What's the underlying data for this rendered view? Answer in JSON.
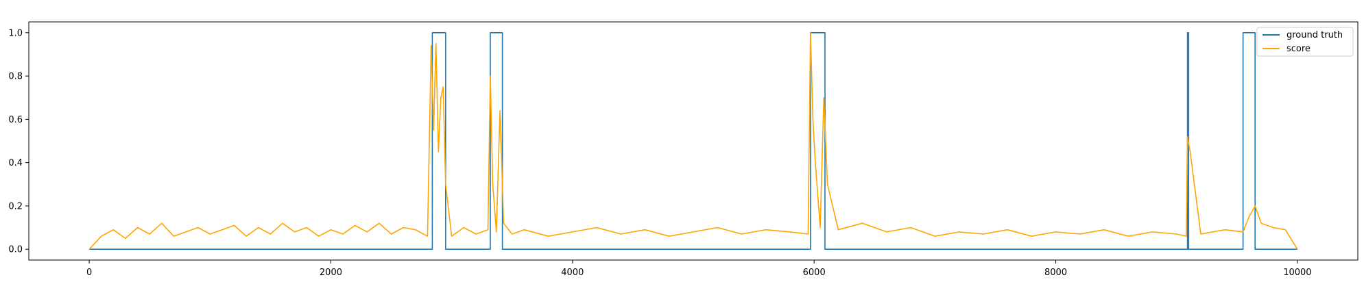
{
  "chart_data": {
    "type": "line",
    "title": "",
    "xlabel": "",
    "ylabel": "",
    "xlim": [
      -500,
      10500
    ],
    "ylim": [
      -0.05,
      1.05
    ],
    "xticks": [
      0,
      2000,
      4000,
      6000,
      8000,
      10000
    ],
    "yticks": [
      0.0,
      0.2,
      0.4,
      0.6,
      0.8,
      1.0
    ],
    "xtick_labels": [
      "0",
      "2000",
      "4000",
      "6000",
      "8000",
      "10000"
    ],
    "ytick_labels": [
      "0.0",
      "0.2",
      "0.4",
      "0.6",
      "0.8",
      "1.0"
    ],
    "grid": false,
    "legend_position": "top-right",
    "series": [
      {
        "name": "ground truth",
        "color": "#1f77b4",
        "x": [
          0,
          2840,
          2840,
          2950,
          2950,
          3320,
          3320,
          3420,
          3420,
          5970,
          5970,
          6090,
          6090,
          9090,
          9090,
          9100,
          9100,
          9550,
          9550,
          9650,
          9650,
          10000
        ],
        "y": [
          0,
          0,
          1,
          1,
          0,
          0,
          1,
          1,
          0,
          0,
          1,
          1,
          0,
          0,
          1,
          1,
          0,
          0,
          1,
          1,
          0,
          0
        ]
      },
      {
        "name": "score",
        "color": "#ffa500",
        "x": [
          0,
          100,
          200,
          300,
          400,
          500,
          600,
          700,
          800,
          900,
          1000,
          1100,
          1200,
          1300,
          1400,
          1500,
          1600,
          1700,
          1800,
          1900,
          2000,
          2100,
          2200,
          2300,
          2400,
          2500,
          2600,
          2700,
          2800,
          2830,
          2850,
          2870,
          2890,
          2910,
          2930,
          2950,
          3000,
          3100,
          3200,
          3300,
          3320,
          3340,
          3370,
          3400,
          3430,
          3500,
          3600,
          3800,
          4000,
          4200,
          4400,
          4600,
          4800,
          5000,
          5200,
          5400,
          5600,
          5800,
          5950,
          5970,
          5990,
          6010,
          6050,
          6080,
          6110,
          6200,
          6400,
          6600,
          6800,
          7000,
          7200,
          7400,
          7600,
          7800,
          8000,
          8200,
          8400,
          8600,
          8800,
          9000,
          9080,
          9090,
          9100,
          9110,
          9200,
          9400,
          9550,
          9600,
          9650,
          9700,
          9800,
          9900,
          10000
        ],
        "y": [
          0.0,
          0.06,
          0.09,
          0.05,
          0.1,
          0.07,
          0.12,
          0.06,
          0.08,
          0.1,
          0.07,
          0.09,
          0.11,
          0.06,
          0.1,
          0.07,
          0.12,
          0.08,
          0.1,
          0.06,
          0.09,
          0.07,
          0.11,
          0.08,
          0.12,
          0.07,
          0.1,
          0.09,
          0.06,
          0.94,
          0.55,
          0.95,
          0.45,
          0.7,
          0.75,
          0.3,
          0.06,
          0.1,
          0.07,
          0.09,
          0.8,
          0.3,
          0.08,
          0.64,
          0.12,
          0.07,
          0.09,
          0.06,
          0.08,
          0.1,
          0.07,
          0.09,
          0.06,
          0.08,
          0.1,
          0.07,
          0.09,
          0.08,
          0.07,
          1.0,
          0.6,
          0.4,
          0.1,
          0.7,
          0.3,
          0.09,
          0.12,
          0.08,
          0.1,
          0.06,
          0.08,
          0.07,
          0.09,
          0.06,
          0.08,
          0.07,
          0.09,
          0.06,
          0.08,
          0.07,
          0.06,
          0.52,
          0.49,
          0.46,
          0.07,
          0.09,
          0.08,
          0.15,
          0.2,
          0.12,
          0.1,
          0.09,
          0.0
        ]
      }
    ]
  }
}
